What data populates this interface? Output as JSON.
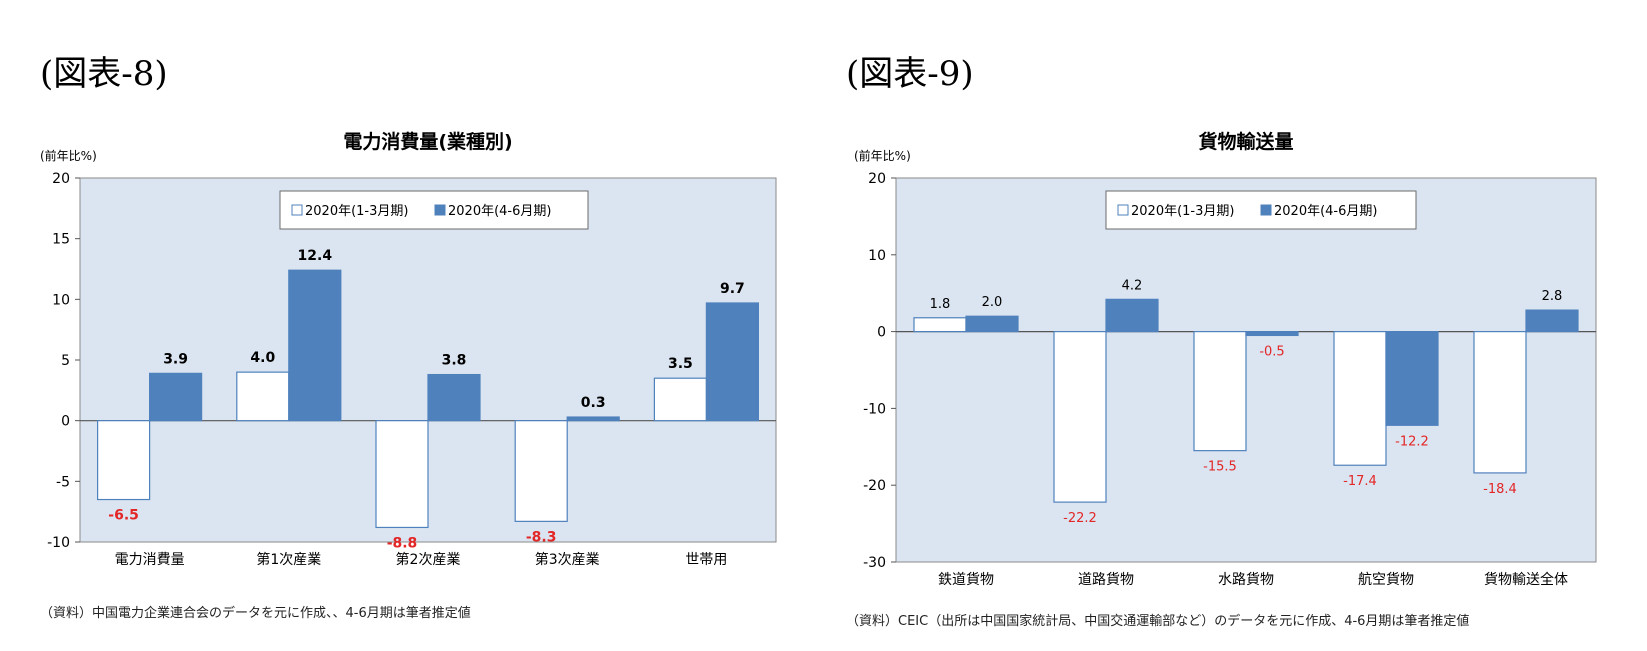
{
  "figures": [
    {
      "label": "(図表-8)",
      "source": "（資料）中国電力企業連合会のデータを元に作成、、4-6月期は筆者推定値"
    },
    {
      "label": "(図表-9)",
      "source": "（資料）CEIC（出所は中国国家統計局、中国交通運輸部など）のデータを元に作成、4-6月期は筆者推定値"
    }
  ],
  "chart_data": [
    {
      "type": "bar",
      "title": "電力消費量(業種別)",
      "ylabel": "(前年比%)",
      "xlabel": "",
      "ylim": [
        -10,
        20
      ],
      "yticks": [
        -10,
        -5,
        0,
        5,
        10,
        15,
        20
      ],
      "categories": [
        "電力消費量",
        "第1次産業",
        "第2次産業",
        "第3次産業",
        "世帯用"
      ],
      "series": [
        {
          "name": "2020年(1-3月期)",
          "values": [
            -6.5,
            4.0,
            -8.8,
            -8.3,
            3.5
          ],
          "labels": [
            "-6.5",
            "4.0",
            "-8.8",
            "-8.3",
            "3.5"
          ],
          "color": "#ffffff"
        },
        {
          "name": "2020年(4-6月期)",
          "values": [
            3.9,
            12.4,
            3.8,
            0.3,
            9.7
          ],
          "labels": [
            "3.9",
            "12.4",
            "3.8",
            "0.3",
            "9.7"
          ],
          "color": "#4f81bd"
        }
      ],
      "legend_position": "top-center",
      "colors": {
        "plot_bg": "#dbe5f1",
        "bar_outline": "#4f81bd",
        "negative_label": "#e32626"
      }
    },
    {
      "type": "bar",
      "title": "貨物輸送量",
      "ylabel": "(前年比%)",
      "xlabel": "",
      "ylim": [
        -30,
        20
      ],
      "yticks": [
        -30,
        -20,
        -10,
        0,
        10,
        20
      ],
      "categories": [
        "鉄道貨物",
        "道路貨物",
        "水路貨物",
        "航空貨物",
        "貨物輸送全体"
      ],
      "series": [
        {
          "name": "2020年(1-3月期)",
          "values": [
            1.8,
            -22.2,
            -15.5,
            -17.4,
            -18.4
          ],
          "labels": [
            "1.8",
            "-22.2",
            "-15.5",
            "-17.4",
            "-18.4"
          ],
          "color": "#ffffff"
        },
        {
          "name": "2020年(4-6月期)",
          "values": [
            2.0,
            4.2,
            -0.5,
            -12.2,
            2.8
          ],
          "labels": [
            "2.0",
            "4.2",
            "-0.5",
            "-12.2",
            "2.8"
          ],
          "color": "#4f81bd"
        }
      ],
      "legend_position": "top-center",
      "colors": {
        "plot_bg": "#dbe5f1",
        "bar_outline": "#4f81bd",
        "negative_label": "#e32626"
      }
    }
  ]
}
